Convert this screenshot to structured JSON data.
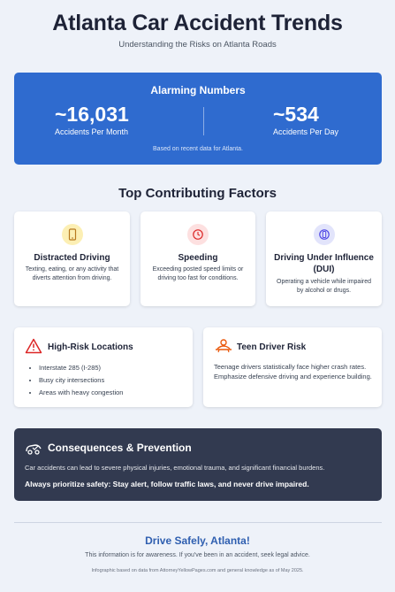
{
  "header": {
    "title": "Atlanta Car Accident Trends",
    "subtitle": "Understanding the Risks on Atlanta Roads"
  },
  "stats": {
    "heading": "Alarming Numbers",
    "items": [
      {
        "value": "~16,031",
        "label": "Accidents Per Month"
      },
      {
        "value": "~534",
        "label": "Accidents Per Day"
      }
    ],
    "note": "Based on recent data for Atlanta.",
    "color": "#2f6bcf"
  },
  "factors": {
    "heading": "Top Contributing Factors",
    "items": [
      {
        "icon": "phone-icon",
        "title": "Distracted Driving",
        "description": "Texting, eating, or any activity that diverts attention from driving."
      },
      {
        "icon": "clock-icon",
        "title": "Speeding",
        "description": "Exceeding posted speed limits or driving too fast for conditions."
      },
      {
        "icon": "dui-icon",
        "title": "Driving Under Influence (DUI)",
        "description": "Operating a vehicle while impaired by alcohol or drugs."
      }
    ]
  },
  "risk_locations": {
    "icon": "warning-icon",
    "title": "High-Risk Locations",
    "items": [
      "Interstate 285 (I-285)",
      "Busy city intersections",
      "Areas with heavy congestion"
    ]
  },
  "teen_risk": {
    "icon": "teen-driver-icon",
    "title": "Teen Driver Risk",
    "text": "Teenage drivers statistically face higher crash rates. Emphasize defensive driving and experience building."
  },
  "consequences": {
    "icon": "car-crash-icon",
    "title": "Consequences & Prevention",
    "text": "Car accidents can lead to severe physical injuries, emotional trauma, and significant financial burdens.",
    "emphasis": "Always prioritize safety: Stay alert, follow traffic laws, and never drive impaired."
  },
  "footer": {
    "title": "Drive Safely, Atlanta!",
    "text": "This information is for awareness. If you've been in an accident, seek legal advice.",
    "source": "Infographic based on data from AttorneyYellowPages.com and general knowledge as of May 2025."
  }
}
